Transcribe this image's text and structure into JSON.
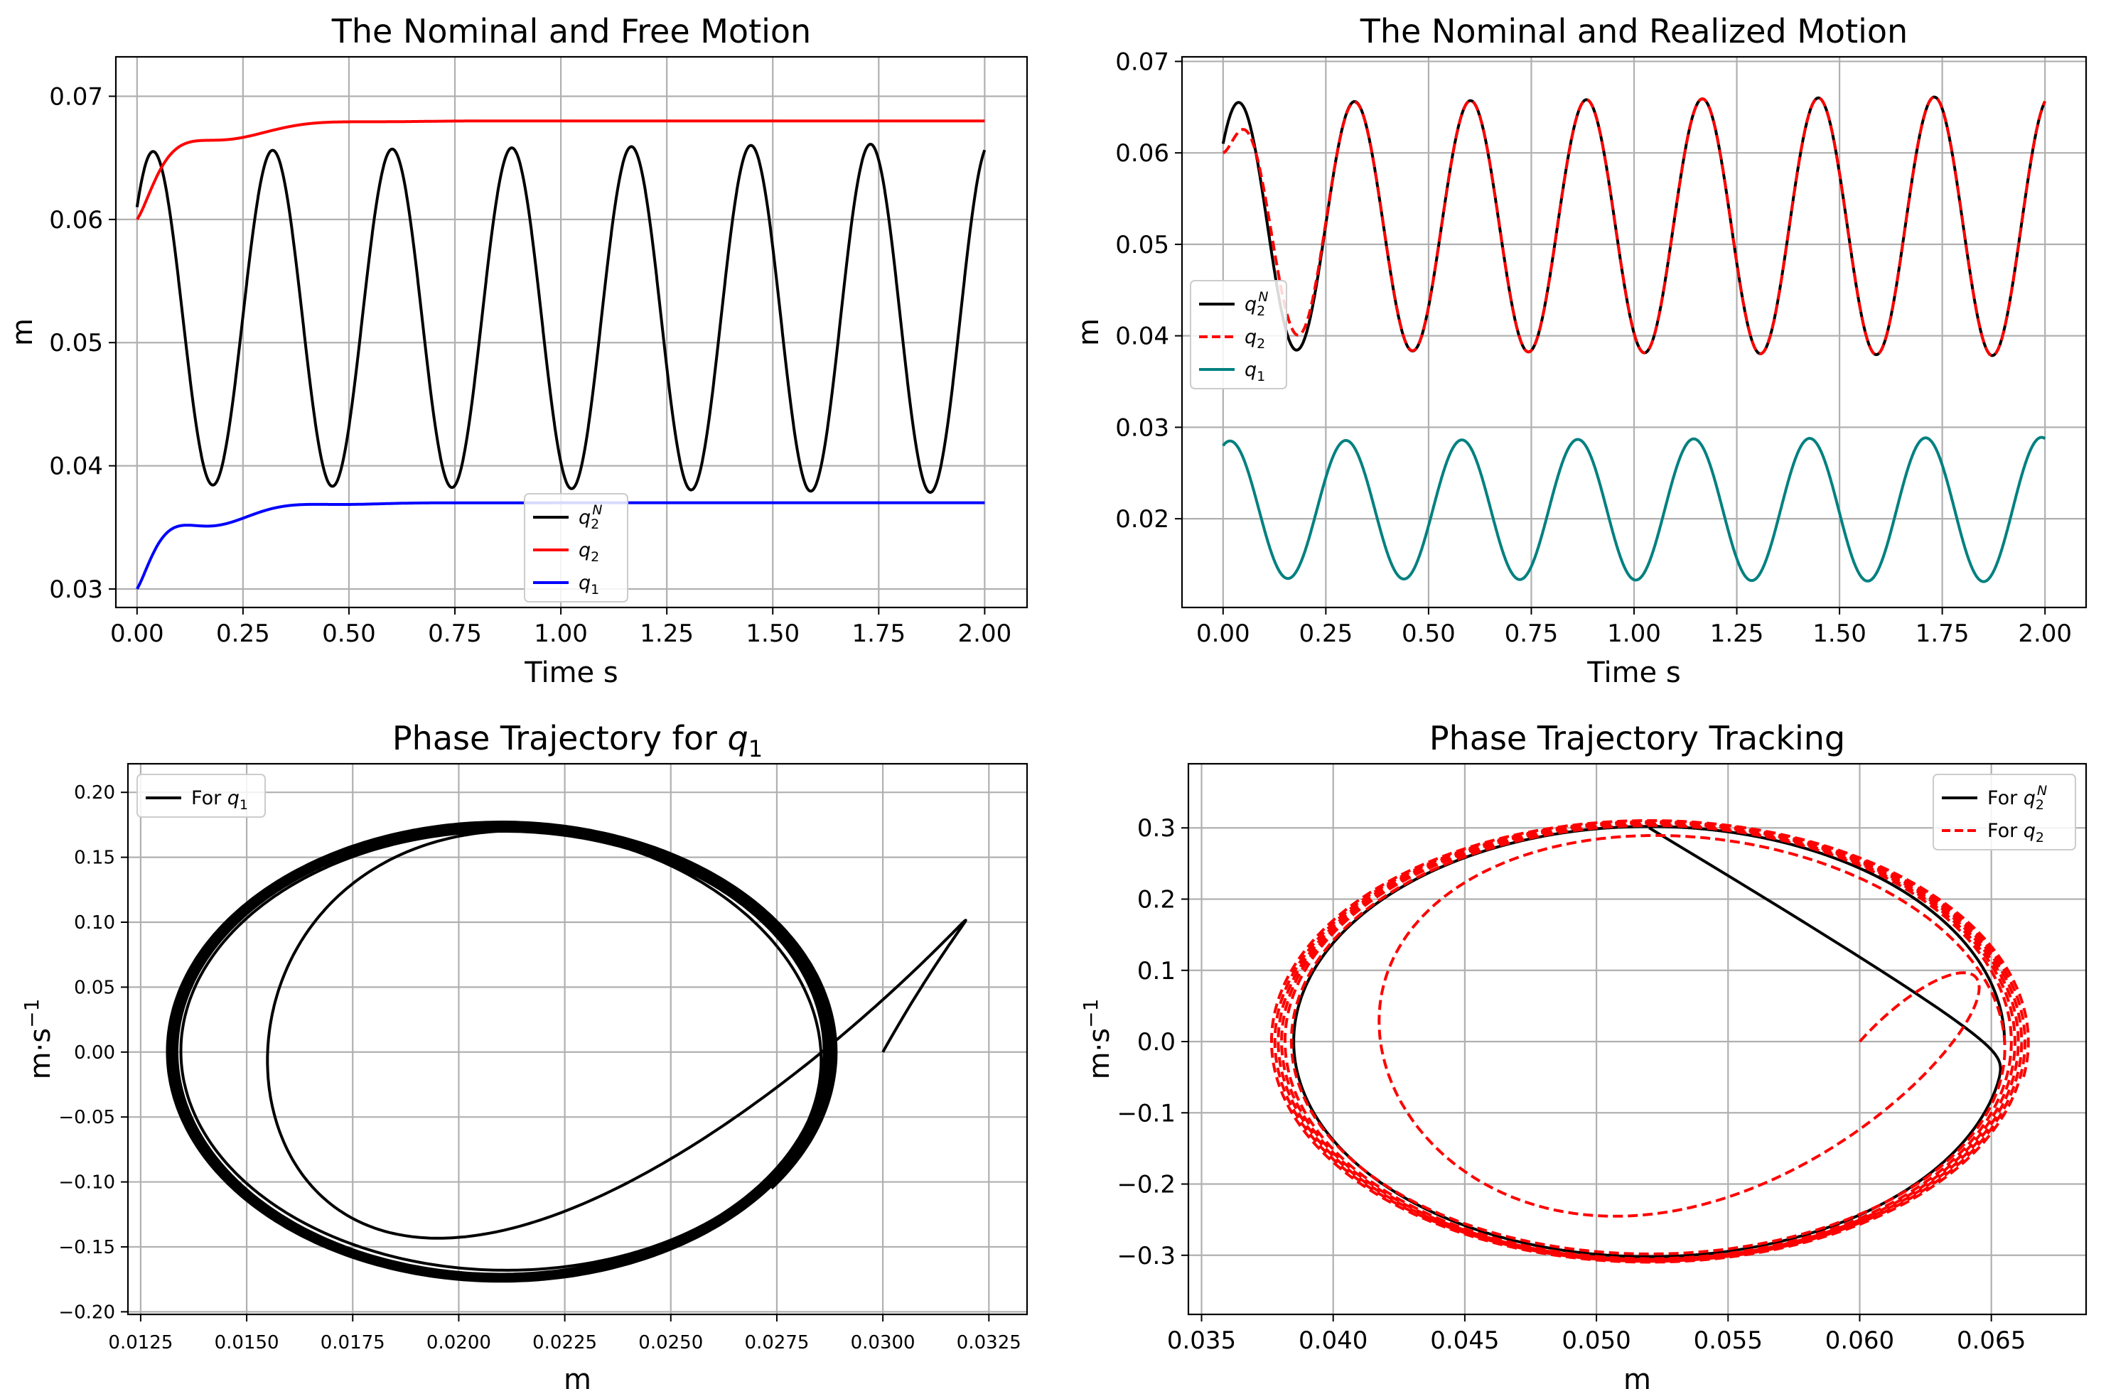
{
  "figure_colors": {
    "black": "#000000",
    "red": "#ff0000",
    "blue": "#0000ff",
    "teal": "#008080",
    "grid": "#b0b0b0"
  },
  "chart_data": [
    {
      "type": "line",
      "title": "The Nominal and Free Motion",
      "xlabel": "Time s",
      "ylabel": "m",
      "xlim": [
        -0.05,
        2.1
      ],
      "ylim": [
        0.0285,
        0.0732
      ],
      "xticks": [
        0.0,
        0.25,
        0.5,
        0.75,
        1.0,
        1.25,
        1.5,
        1.75,
        2.0
      ],
      "xtick_labels": [
        "0.00",
        "0.25",
        "0.50",
        "0.75",
        "1.00",
        "1.25",
        "1.50",
        "1.75",
        "2.00"
      ],
      "yticks": [
        0.03,
        0.04,
        0.05,
        0.06,
        0.07
      ],
      "ytick_labels": [
        "0.03",
        "0.04",
        "0.05",
        "0.06",
        "0.07"
      ],
      "grid": true,
      "legend_position": "lower-center",
      "series": [
        {
          "name": "q2N",
          "legend_base": "q",
          "legend_sub": "2",
          "legend_sup": "N",
          "color": "#000000",
          "dash": "solid",
          "model": {
            "kind": "sine",
            "t0": 0,
            "t1": 2,
            "c": 0.052,
            "a0": 0.0135,
            "ar": 0.0007,
            "om": 22.27,
            "ph": 0.73
          }
        },
        {
          "name": "q2",
          "legend_base": "q",
          "legend_sub": "2",
          "legend_sup": "",
          "color": "#ff0000",
          "dash": "solid",
          "model": {
            "kind": "settle",
            "t0": 0,
            "t1": 2,
            "start": 0.06,
            "end": 0.068,
            "amp": 0.0035,
            "tau": 0.12,
            "om": 17,
            "ph": -0.2
          }
        },
        {
          "name": "q1",
          "legend_base": "q",
          "legend_sub": "1",
          "legend_sup": "",
          "color": "#0000ff",
          "dash": "solid",
          "model": {
            "kind": "settle",
            "t0": 0,
            "t1": 2,
            "start": 0.03,
            "end": 0.037,
            "amp": 0.0032,
            "tau": 0.12,
            "om": 20,
            "ph": 0.0
          }
        }
      ]
    },
    {
      "type": "line",
      "title": "The Nominal and Realized Motion",
      "xlabel": "Time s",
      "ylabel": "m",
      "xlim": [
        -0.1,
        2.1
      ],
      "ylim": [
        0.0103,
        0.0705
      ],
      "xticks": [
        0.0,
        0.25,
        0.5,
        0.75,
        1.0,
        1.25,
        1.5,
        1.75,
        2.0
      ],
      "xtick_labels": [
        "0.00",
        "0.25",
        "0.50",
        "0.75",
        "1.00",
        "1.25",
        "1.50",
        "1.75",
        "2.00"
      ],
      "yticks": [
        0.02,
        0.03,
        0.04,
        0.05,
        0.06,
        0.07
      ],
      "ytick_labels": [
        "0.02",
        "0.03",
        "0.04",
        "0.05",
        "0.06",
        "0.07"
      ],
      "grid": true,
      "legend_position": "center-left",
      "series": [
        {
          "name": "q2N",
          "legend_base": "q",
          "legend_sub": "2",
          "legend_sup": "N",
          "color": "#000000",
          "dash": "solid",
          "model": {
            "kind": "sine",
            "t0": 0,
            "t1": 2,
            "c": 0.052,
            "a0": 0.0135,
            "ar": 0.0007,
            "om": 22.27,
            "ph": 0.73
          }
        },
        {
          "name": "q2",
          "legend_base": "q",
          "legend_sub": "2",
          "legend_sup": "",
          "color": "#ff0000",
          "dash": "dashed",
          "model": {
            "kind": "track",
            "t0": 0,
            "t1": 2,
            "c": 0.052,
            "a0": 0.0135,
            "ar": 0.0007,
            "om": 22.27,
            "ph": 0.73,
            "start": 0.06,
            "tau": 0.07
          }
        },
        {
          "name": "q1",
          "legend_base": "q",
          "legend_sub": "1",
          "legend_sup": "",
          "color": "#008080",
          "dash": "solid",
          "model": {
            "kind": "sine",
            "t0": 0,
            "t1": 2,
            "c": 0.021,
            "a0": 0.0075,
            "ar": 0.0004,
            "om": 22.27,
            "ph": 1.2
          }
        }
      ]
    },
    {
      "type": "line",
      "title": "Phase Trajectory for q1",
      "title_prefix": "Phase Trajectory for ",
      "title_math": "q",
      "title_math_sub": "1",
      "xlabel": "m",
      "ylabel": "m·s",
      "ylabel_sup": "−1",
      "xlim": [
        0.0122,
        0.0334
      ],
      "ylim": [
        -0.202,
        0.222
      ],
      "xticks": [
        0.0125,
        0.015,
        0.0175,
        0.02,
        0.0225,
        0.025,
        0.0275,
        0.03,
        0.0325
      ],
      "xtick_labels": [
        "0.0125",
        "0.0150",
        "0.0175",
        "0.0200",
        "0.0225",
        "0.0250",
        "0.0275",
        "0.0300",
        "0.0325"
      ],
      "yticks": [
        -0.2,
        -0.15,
        -0.1,
        -0.05,
        0.0,
        0.05,
        0.1,
        0.15,
        0.2
      ],
      "ytick_labels": [
        "−0.20",
        "−0.15",
        "−0.10",
        "−0.05",
        "0.00",
        "0.05",
        "0.10",
        "0.15",
        "0.20"
      ],
      "grid": true,
      "legend_position": "upper-left",
      "series": [
        {
          "name": "For q1",
          "legend_prefix": "For ",
          "legend_base": "q",
          "legend_sub": "1",
          "legend_sup": "",
          "color": "#000000",
          "dash": "solid",
          "model": {
            "kind": "phase",
            "t0": 0,
            "t1": 2.02,
            "cx": 0.021,
            "cy": 0.0,
            "ax0": 0.0075,
            "axr": 0.0004,
            "ay0": 0.168,
            "ayr": 0.0095,
            "om": 22.27,
            "ph": 1.2,
            "sx": 0.03,
            "sy": 0.0,
            "tau": 0.075,
            "kx": 0.004,
            "ky": 0.2
          }
        }
      ]
    },
    {
      "type": "line",
      "title": "Phase Trajectory Tracking",
      "xlabel": "m",
      "ylabel": "m·s",
      "ylabel_sup": "−1",
      "xlim": [
        0.0345,
        0.0686
      ],
      "ylim": [
        -0.383,
        0.39
      ],
      "xticks": [
        0.035,
        0.04,
        0.045,
        0.05,
        0.055,
        0.06,
        0.065
      ],
      "xtick_labels": [
        "0.035",
        "0.040",
        "0.045",
        "0.050",
        "0.055",
        "0.060",
        "0.065"
      ],
      "yticks": [
        -0.3,
        -0.2,
        -0.1,
        0.0,
        0.1,
        0.2,
        0.3
      ],
      "ytick_labels": [
        "−0.3",
        "−0.2",
        "−0.1",
        "0.0",
        "0.1",
        "0.2",
        "0.3"
      ],
      "grid": true,
      "legend_position": "upper-right",
      "series": [
        {
          "name": "For q2N",
          "legend_prefix": "For ",
          "legend_base": "q",
          "legend_sub": "2",
          "legend_sup": "N",
          "color": "#000000",
          "dash": "solid",
          "model": {
            "kind": "phase",
            "t0": 0,
            "t1": 0.282,
            "cx": 0.052,
            "cy": 0.0,
            "ax0": 0.0135,
            "axr": 0.0,
            "ay0": 0.302,
            "ayr": 0.0,
            "om": 22.27,
            "ph": 1.5708,
            "sx": 0.052,
            "sy": 0.3,
            "tau": 0.001,
            "kx": 0,
            "ky": 0
          }
        },
        {
          "name": "For q2",
          "legend_prefix": "For ",
          "legend_base": "q",
          "legend_sub": "2",
          "legend_sup": "",
          "color": "#ff0000",
          "dash": "dashed",
          "model": {
            "kind": "phase",
            "t0": 0,
            "t1": 2.02,
            "cx": 0.052,
            "cy": 0.0,
            "ax0": 0.0135,
            "axr": 0.0009,
            "ay0": 0.302,
            "ayr": 0.0085,
            "om": 22.27,
            "ph": 0.73,
            "sx": 0.06,
            "sy": 0.0,
            "tau": 0.09,
            "kx": 0.004,
            "ky": 0.13
          }
        }
      ]
    }
  ]
}
